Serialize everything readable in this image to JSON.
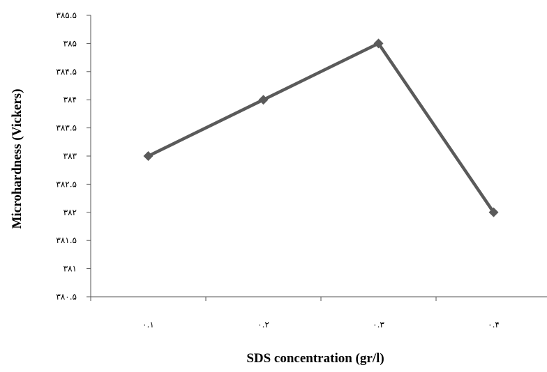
{
  "chart_data": {
    "type": "line",
    "title": "",
    "xlabel": "SDS concentration (gr/l)",
    "ylabel": "Microhardness (Vickers)",
    "categories": [
      "۰.۱",
      "۰.۲",
      "۰.۳",
      "۰.۴"
    ],
    "x": [
      0.1,
      0.2,
      0.3,
      0.4
    ],
    "series": [
      {
        "values": [
          383,
          384,
          385,
          382
        ]
      }
    ],
    "ylim": [
      380.5,
      385.5
    ],
    "y_ticks": [
      380.5,
      381,
      381.5,
      382,
      382.5,
      383,
      383.5,
      384,
      384.5,
      385,
      385.5
    ],
    "y_tick_labels": [
      "۳۸۰.۵",
      "۳۸۱",
      "۳۸۱.۵",
      "۳۸۲",
      "۳۸۲.۵",
      "۳۸۳",
      "۳۸۳.۵",
      "۳۸۴",
      "۳۸۴.۵",
      "۳۸۵",
      "۳۸۵.۵"
    ],
    "grid": false,
    "legend": "none",
    "line_color": "#5a5a5a",
    "marker": "diamond"
  }
}
